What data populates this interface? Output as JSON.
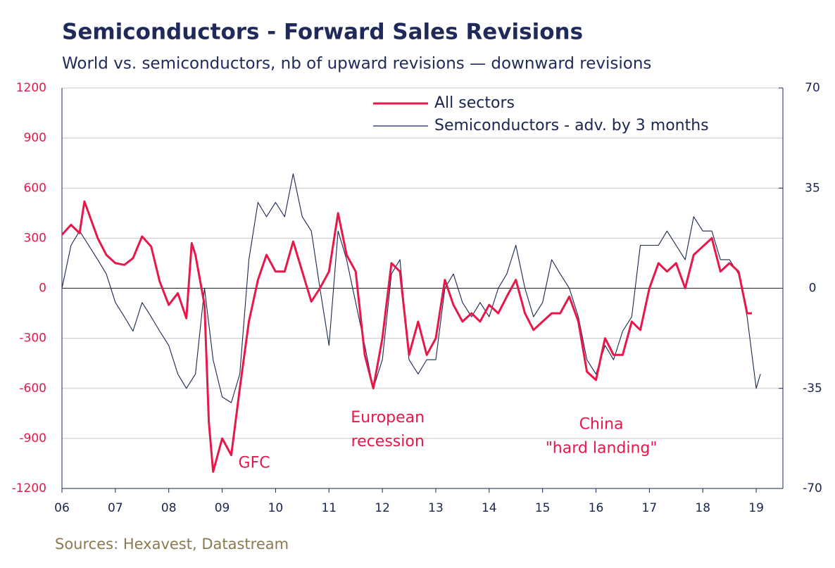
{
  "chart_data": {
    "type": "line",
    "title": "Semiconductors - Forward Sales Revisions",
    "subtitle": "World vs. semiconductors, nb of upward revisions — downward revisions",
    "source": "Sources: Hexavest, Datastream",
    "xlim": [
      2006,
      2019.5
    ],
    "xticks": [
      {
        "value": 2006,
        "label": "06"
      },
      {
        "value": 2007,
        "label": "07"
      },
      {
        "value": 2008,
        "label": "08"
      },
      {
        "value": 2009,
        "label": "09"
      },
      {
        "value": 2010,
        "label": "10"
      },
      {
        "value": 2011,
        "label": "11"
      },
      {
        "value": 2012,
        "label": "12"
      },
      {
        "value": 2013,
        "label": "13"
      },
      {
        "value": 2014,
        "label": "14"
      },
      {
        "value": 2015,
        "label": "15"
      },
      {
        "value": 2016,
        "label": "16"
      },
      {
        "value": 2017,
        "label": "17"
      },
      {
        "value": 2018,
        "label": "18"
      },
      {
        "value": 2019,
        "label": "19"
      }
    ],
    "ylim": [
      -1200,
      1200
    ],
    "yticks": [
      1200,
      900,
      600,
      300,
      0,
      -300,
      -600,
      -900,
      -1200
    ],
    "y2lim": [
      -70,
      70
    ],
    "y2ticks": [
      70,
      35,
      0,
      -35,
      -70
    ],
    "grid": true,
    "legend": "top",
    "annotations": [
      {
        "text": [
          "GFC"
        ],
        "x": 2009.6,
        "y": -1050
      },
      {
        "text": [
          "European",
          "recession"
        ],
        "x": 2012.1,
        "y": -850
      },
      {
        "text": [
          "China",
          "\"hard landing\""
        ],
        "x": 2016.1,
        "y": -890
      }
    ],
    "series": [
      {
        "name": "All sectors",
        "color": "#e8174a",
        "axis": "y",
        "x": [
          2006.0,
          2006.17,
          2006.33,
          2006.42,
          2006.5,
          2006.67,
          2006.83,
          2007.0,
          2007.17,
          2007.33,
          2007.5,
          2007.67,
          2007.83,
          2008.0,
          2008.17,
          2008.33,
          2008.43,
          2008.5,
          2008.67,
          2008.75,
          2008.83,
          2009.0,
          2009.17,
          2009.33,
          2009.5,
          2009.67,
          2009.83,
          2010.0,
          2010.17,
          2010.33,
          2010.5,
          2010.67,
          2010.83,
          2011.0,
          2011.17,
          2011.33,
          2011.5,
          2011.67,
          2011.83,
          2012.0,
          2012.17,
          2012.33,
          2012.5,
          2012.67,
          2012.83,
          2013.0,
          2013.17,
          2013.33,
          2013.5,
          2013.67,
          2013.83,
          2014.0,
          2014.17,
          2014.33,
          2014.5,
          2014.67,
          2014.83,
          2015.0,
          2015.17,
          2015.33,
          2015.5,
          2015.67,
          2015.83,
          2016.0,
          2016.17,
          2016.33,
          2016.5,
          2016.67,
          2016.83,
          2017.0,
          2017.17,
          2017.33,
          2017.5,
          2017.67,
          2017.83,
          2018.0,
          2018.17,
          2018.33,
          2018.5,
          2018.67,
          2018.83,
          2018.92
        ],
        "values": [
          320,
          380,
          330,
          520,
          450,
          300,
          200,
          150,
          140,
          180,
          310,
          250,
          40,
          -100,
          -30,
          -180,
          270,
          200,
          -100,
          -800,
          -1100,
          -900,
          -1000,
          -600,
          -200,
          50,
          200,
          100,
          100,
          280,
          100,
          -80,
          0,
          100,
          450,
          200,
          100,
          -400,
          -600,
          -300,
          150,
          100,
          -400,
          -200,
          -400,
          -300,
          50,
          -100,
          -200,
          -150,
          -200,
          -100,
          -150,
          -50,
          50,
          -150,
          -250,
          -200,
          -150,
          -150,
          -50,
          -200,
          -500,
          -550,
          -300,
          -400,
          -400,
          -200,
          -250,
          0,
          150,
          100,
          150,
          0,
          200,
          250,
          300,
          100,
          150,
          100,
          -150,
          -150
        ]
      },
      {
        "name": "Semiconductors - adv. by 3 months",
        "color": "#1a2550",
        "axis": "y2",
        "x": [
          2006.0,
          2006.17,
          2006.33,
          2006.5,
          2006.67,
          2006.83,
          2007.0,
          2007.17,
          2007.33,
          2007.5,
          2007.67,
          2007.83,
          2008.0,
          2008.17,
          2008.33,
          2008.5,
          2008.67,
          2008.83,
          2009.0,
          2009.17,
          2009.33,
          2009.5,
          2009.67,
          2009.83,
          2010.0,
          2010.17,
          2010.33,
          2010.5,
          2010.67,
          2010.83,
          2011.0,
          2011.17,
          2011.33,
          2011.5,
          2011.67,
          2011.83,
          2012.0,
          2012.17,
          2012.33,
          2012.5,
          2012.67,
          2012.83,
          2013.0,
          2013.17,
          2013.33,
          2013.5,
          2013.67,
          2013.83,
          2014.0,
          2014.17,
          2014.33,
          2014.5,
          2014.67,
          2014.83,
          2015.0,
          2015.17,
          2015.33,
          2015.5,
          2015.67,
          2015.83,
          2016.0,
          2016.17,
          2016.33,
          2016.5,
          2016.67,
          2016.83,
          2017.0,
          2017.17,
          2017.33,
          2017.5,
          2017.67,
          2017.83,
          2018.0,
          2018.17,
          2018.33,
          2018.5,
          2018.67,
          2018.83,
          2019.0,
          2019.08
        ],
        "values": [
          0,
          15,
          20,
          15,
          10,
          5,
          -5,
          -10,
          -15,
          -5,
          -10,
          -15,
          -20,
          -30,
          -35,
          -30,
          0,
          -25,
          -38,
          -40,
          -30,
          10,
          30,
          25,
          30,
          25,
          40,
          25,
          20,
          0,
          -20,
          20,
          10,
          -5,
          -20,
          -35,
          -25,
          5,
          10,
          -25,
          -30,
          -25,
          -25,
          0,
          5,
          -5,
          -10,
          -5,
          -10,
          0,
          5,
          15,
          0,
          -10,
          -5,
          10,
          5,
          0,
          -10,
          -25,
          -30,
          -20,
          -25,
          -15,
          -10,
          15,
          15,
          15,
          20,
          15,
          10,
          25,
          20,
          20,
          10,
          10,
          5,
          -10,
          -35,
          -30
        ]
      }
    ]
  }
}
